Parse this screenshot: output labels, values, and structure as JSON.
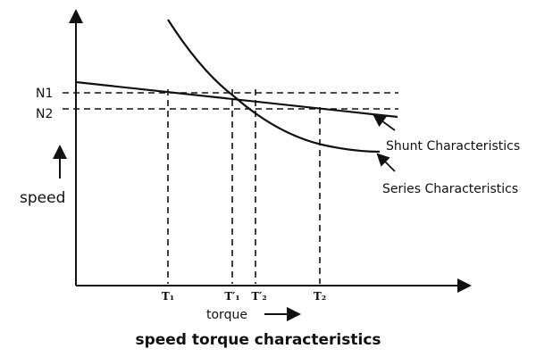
{
  "axis_labels": {
    "y": "speed",
    "x": "torque"
  },
  "speed_levels": [
    "N1",
    "N2"
  ],
  "torque_points": [
    "T₁",
    "T′₁",
    "T′₂",
    "T₂"
  ],
  "curves": {
    "shunt": "Shunt Characteristics",
    "series": "Series Characteristics"
  },
  "caption": "speed torque characteristics"
}
